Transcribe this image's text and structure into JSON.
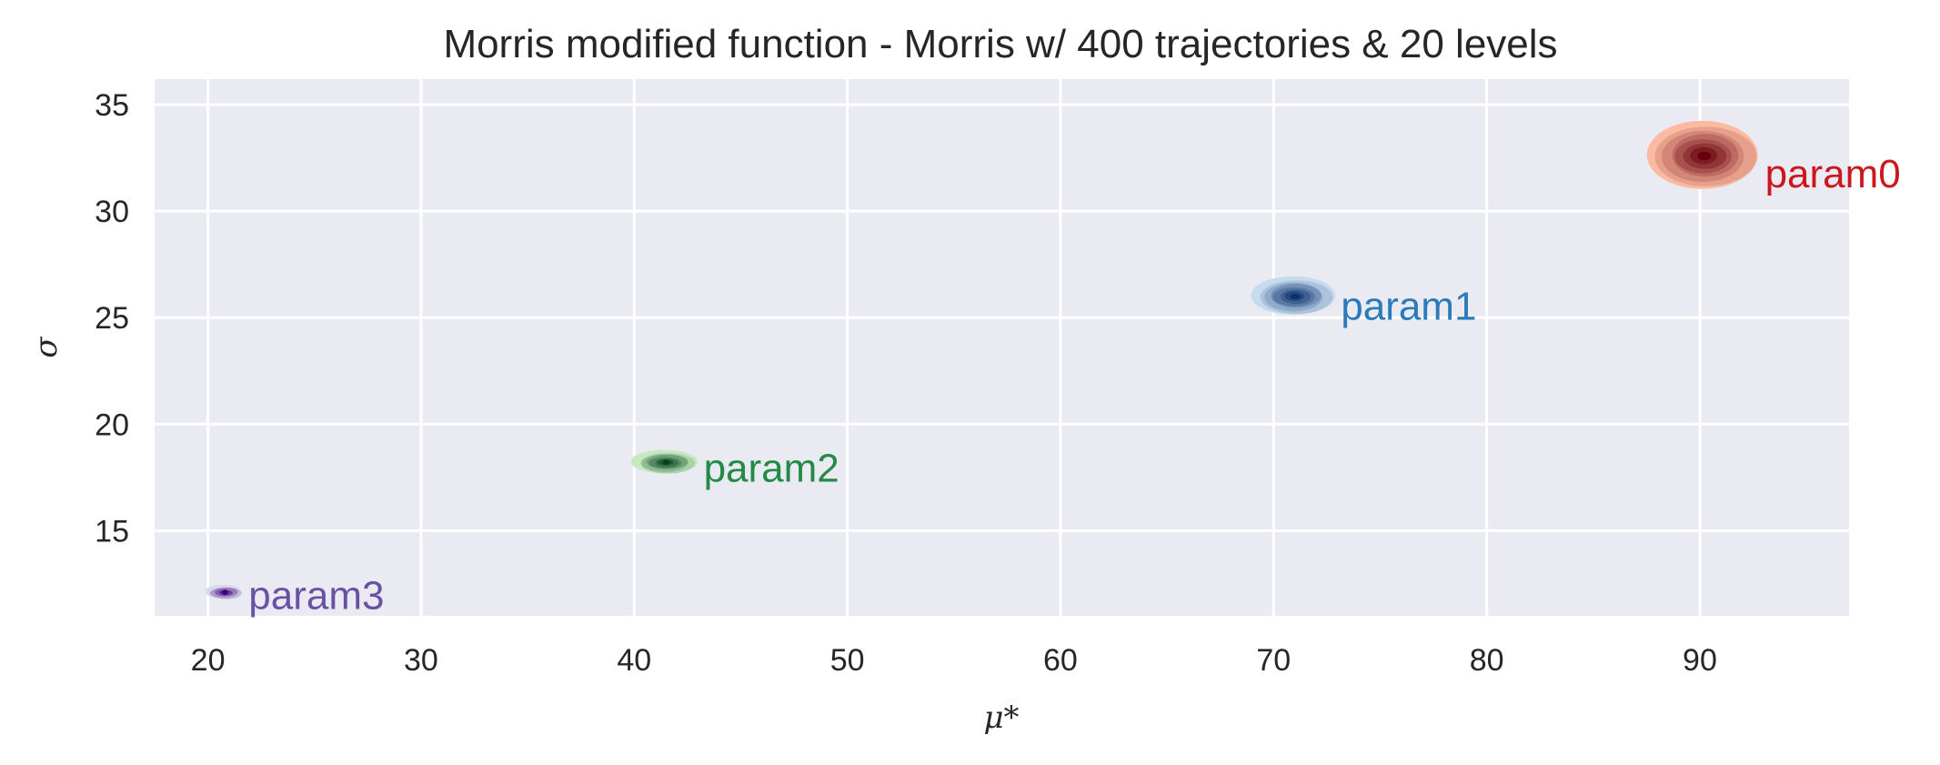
{
  "chart_data": {
    "type": "scatter",
    "title": "Morris modified function - Morris w/ 400 trajectories & 20 levels",
    "xlabel": "μ*",
    "ylabel": "σ",
    "xlim": [
      17.5,
      97
    ],
    "ylim": [
      11,
      36.2
    ],
    "xticks": [
      "20",
      "30",
      "40",
      "50",
      "60",
      "70",
      "80",
      "90"
    ],
    "yticks": [
      "15",
      "20",
      "25",
      "30",
      "35"
    ],
    "grid": true,
    "series": [
      {
        "name": "param0",
        "x": 90.2,
        "y": 32.6,
        "spread_x": 2.6,
        "spread_y": 1.6,
        "color": "#cb181d",
        "cmap": "Reds"
      },
      {
        "name": "param1",
        "x": 71.0,
        "y": 26.0,
        "spread_x": 1.9,
        "spread_y": 0.9,
        "color": "#2b7bba",
        "cmap": "Blues"
      },
      {
        "name": "param2",
        "x": 41.5,
        "y": 18.2,
        "spread_x": 1.5,
        "spread_y": 0.55,
        "color": "#238b45",
        "cmap": "Greens"
      },
      {
        "name": "param3",
        "x": 20.8,
        "y": 12.1,
        "spread_x": 0.85,
        "spread_y": 0.32,
        "color": "#6a51a3",
        "cmap": "Purples"
      }
    ]
  }
}
